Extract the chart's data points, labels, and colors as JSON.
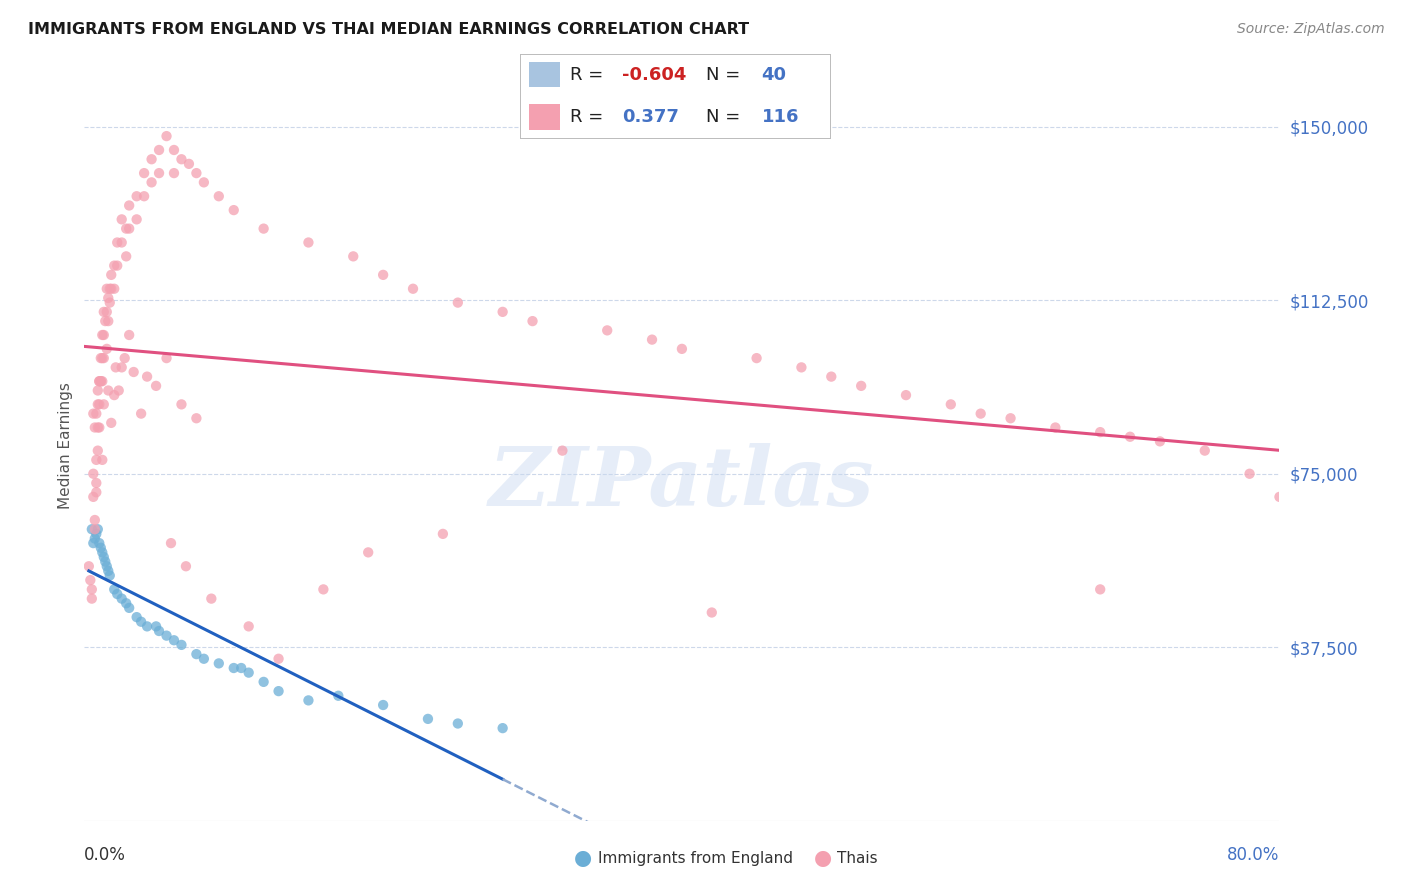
{
  "title": "IMMIGRANTS FROM ENGLAND VS THAI MEDIAN EARNINGS CORRELATION CHART",
  "source": "Source: ZipAtlas.com",
  "ylabel": "Median Earnings",
  "xlim": [
    0.0,
    80.0
  ],
  "ylim": [
    0,
    162000
  ],
  "legend1_color": "#a8c4e0",
  "legend2_color": "#f4a0b0",
  "blue_color": "#6baed6",
  "pink_color": "#f4a0b0",
  "blue_line_color": "#2060c0",
  "pink_line_color": "#e05080",
  "dashed_line_color": "#90aad0",
  "watermark": "ZIPatlas",
  "watermark_color": "#c8d8f0",
  "ytick_vals": [
    37500,
    75000,
    112500,
    150000
  ],
  "ytick_labels": [
    "$37,500",
    "$75,000",
    "$112,500",
    "$150,000"
  ],
  "blue_scatter_x": [
    0.5,
    0.6,
    0.7,
    0.8,
    0.9,
    1.0,
    1.1,
    1.2,
    1.3,
    1.4,
    1.5,
    1.6,
    1.7,
    2.0,
    2.2,
    2.5,
    2.8,
    3.0,
    3.5,
    3.8,
    4.2,
    4.8,
    5.0,
    5.5,
    6.0,
    6.5,
    7.5,
    8.0,
    9.0,
    10.0,
    10.5,
    11.0,
    12.0,
    13.0,
    15.0,
    17.0,
    20.0,
    23.0,
    25.0,
    28.0
  ],
  "blue_scatter_y": [
    63000,
    60000,
    61000,
    62000,
    63000,
    60000,
    59000,
    58000,
    57000,
    56000,
    55000,
    54000,
    53000,
    50000,
    49000,
    48000,
    47000,
    46000,
    44000,
    43000,
    42000,
    42000,
    41000,
    40000,
    39000,
    38000,
    36000,
    35000,
    34000,
    33000,
    33000,
    32000,
    30000,
    28000,
    26000,
    27000,
    25000,
    22000,
    21000,
    20000
  ],
  "pink_scatter_x": [
    0.3,
    0.4,
    0.5,
    0.5,
    0.6,
    0.6,
    0.7,
    0.7,
    0.8,
    0.8,
    0.8,
    0.9,
    0.9,
    0.9,
    1.0,
    1.0,
    1.0,
    1.1,
    1.1,
    1.2,
    1.2,
    1.2,
    1.3,
    1.3,
    1.3,
    1.4,
    1.5,
    1.5,
    1.6,
    1.6,
    1.7,
    1.7,
    1.8,
    1.8,
    2.0,
    2.0,
    2.2,
    2.2,
    2.5,
    2.5,
    2.8,
    2.8,
    3.0,
    3.0,
    3.5,
    3.5,
    4.0,
    4.0,
    4.5,
    4.5,
    5.0,
    5.0,
    5.5,
    6.0,
    6.0,
    6.5,
    7.0,
    7.5,
    8.0,
    9.0,
    10.0,
    12.0,
    15.0,
    18.0,
    20.0,
    22.0,
    25.0,
    28.0,
    30.0,
    35.0,
    38.0,
    40.0,
    45.0,
    48.0,
    50.0,
    52.0,
    55.0,
    58.0,
    60.0,
    62.0,
    65.0,
    68.0,
    70.0,
    72.0,
    75.0,
    78.0,
    80.0,
    1.0,
    0.8,
    1.5,
    2.0,
    2.5,
    3.0,
    1.2,
    1.8,
    2.3,
    3.8,
    4.2,
    5.5,
    6.5,
    7.5,
    0.9,
    1.1,
    1.3,
    0.7,
    0.6,
    1.6,
    2.1,
    2.7,
    3.3,
    4.8,
    5.8,
    6.8,
    8.5,
    11.0,
    13.0,
    16.0,
    19.0,
    24.0,
    32.0,
    42.0,
    68.0
  ],
  "pink_scatter_y": [
    55000,
    52000,
    50000,
    48000,
    75000,
    70000,
    65000,
    63000,
    78000,
    73000,
    71000,
    90000,
    85000,
    80000,
    95000,
    90000,
    85000,
    100000,
    95000,
    105000,
    100000,
    95000,
    110000,
    105000,
    100000,
    108000,
    115000,
    110000,
    113000,
    108000,
    115000,
    112000,
    118000,
    115000,
    120000,
    115000,
    125000,
    120000,
    130000,
    125000,
    128000,
    122000,
    133000,
    128000,
    135000,
    130000,
    140000,
    135000,
    143000,
    138000,
    145000,
    140000,
    148000,
    145000,
    140000,
    143000,
    142000,
    140000,
    138000,
    135000,
    132000,
    128000,
    125000,
    122000,
    118000,
    115000,
    112000,
    110000,
    108000,
    106000,
    104000,
    102000,
    100000,
    98000,
    96000,
    94000,
    92000,
    90000,
    88000,
    87000,
    85000,
    84000,
    83000,
    82000,
    80000,
    75000,
    70000,
    95000,
    88000,
    102000,
    92000,
    98000,
    105000,
    78000,
    86000,
    93000,
    88000,
    96000,
    100000,
    90000,
    87000,
    93000,
    95000,
    90000,
    85000,
    88000,
    93000,
    98000,
    100000,
    97000,
    94000,
    60000,
    55000,
    48000,
    42000,
    35000,
    50000,
    58000,
    62000,
    80000,
    45000,
    50000
  ]
}
